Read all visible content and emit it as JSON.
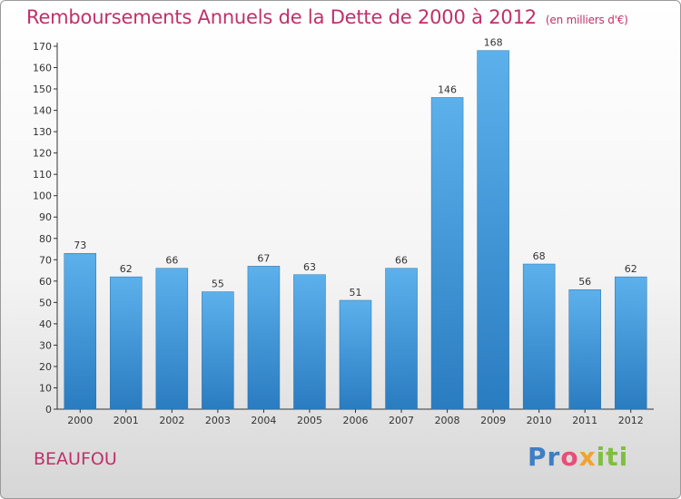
{
  "title": "Remboursements Annuels de la Dette de 2000 à 2012",
  "unit": "(en milliers d'€)",
  "city": "BEAUFOU",
  "logo": {
    "p": "Pr",
    "o": "o",
    "x": "x",
    "i": "iti"
  },
  "chart_data": {
    "type": "bar",
    "title": "Remboursements Annuels de la Dette de 2000 à 2012",
    "subtitle": "(en milliers d'€)",
    "categories": [
      "2000",
      "2001",
      "2002",
      "2003",
      "2004",
      "2005",
      "2006",
      "2007",
      "2008",
      "2009",
      "2010",
      "2011",
      "2012"
    ],
    "values": [
      73,
      62,
      66,
      55,
      67,
      63,
      51,
      66,
      146,
      168,
      68,
      56,
      62
    ],
    "ylim": [
      0,
      170
    ],
    "yticks": [
      0,
      10,
      20,
      30,
      40,
      50,
      60,
      70,
      80,
      90,
      100,
      110,
      120,
      130,
      140,
      150,
      160,
      170
    ],
    "grid": false,
    "legend": "none",
    "bar_color": "#4fa3e0"
  }
}
